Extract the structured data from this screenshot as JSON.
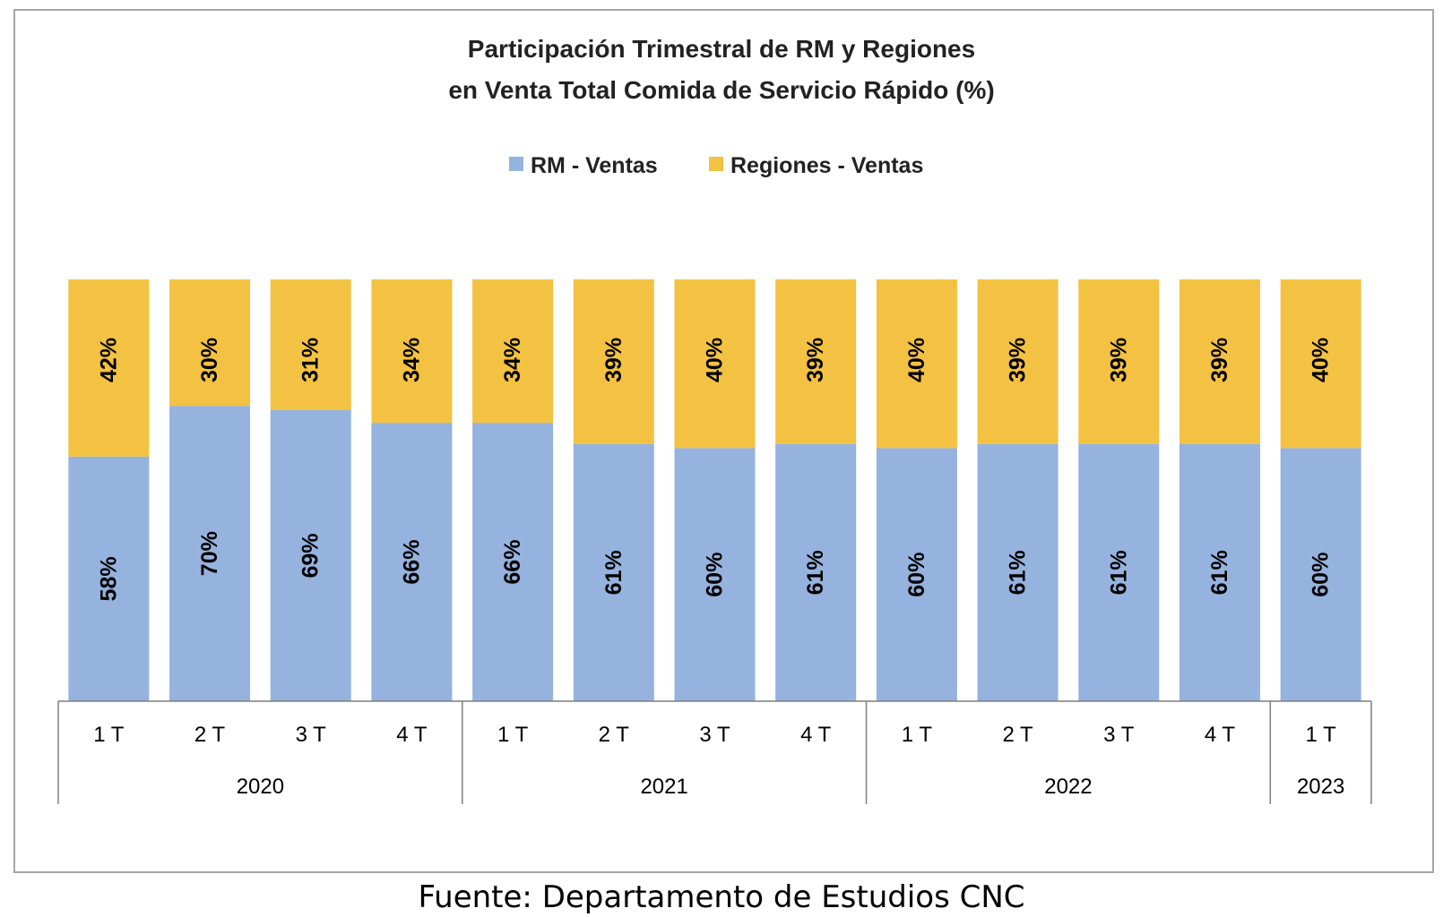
{
  "colors": {
    "rm": "#95b3de",
    "regiones": "#f4c242",
    "axis": "#7f7f7f",
    "frame": "#a6a6a6"
  },
  "chart_data": {
    "type": "bar",
    "stacked": true,
    "title": [
      "Participación Trimestral de RM y Regiones",
      "en Venta Total Comida de Servicio Rápido (%)"
    ],
    "legend": {
      "position": "top",
      "entries": [
        "RM - Ventas",
        "Regiones - Ventas"
      ]
    },
    "categories": [
      "1 T",
      "2 T",
      "3 T",
      "4 T",
      "1 T",
      "2 T",
      "3 T",
      "4 T",
      "1 T",
      "2 T",
      "3 T",
      "4 T",
      "1 T"
    ],
    "groups": [
      {
        "label": "2020",
        "count": 4
      },
      {
        "label": "2021",
        "count": 4
      },
      {
        "label": "2022",
        "count": 4
      },
      {
        "label": "2023",
        "count": 1
      }
    ],
    "series": [
      {
        "name": "RM - Ventas",
        "values": [
          58,
          70,
          69,
          66,
          66,
          61,
          60,
          61,
          60,
          61,
          61,
          61,
          60
        ]
      },
      {
        "name": "Regiones - Ventas",
        "values": [
          42,
          30,
          31,
          34,
          34,
          39,
          40,
          39,
          40,
          39,
          39,
          39,
          40
        ]
      }
    ],
    "value_suffix": "%",
    "ylim": [
      0,
      100
    ],
    "grid": false
  },
  "source_note": "Fuente: Departamento de Estudios CNC"
}
